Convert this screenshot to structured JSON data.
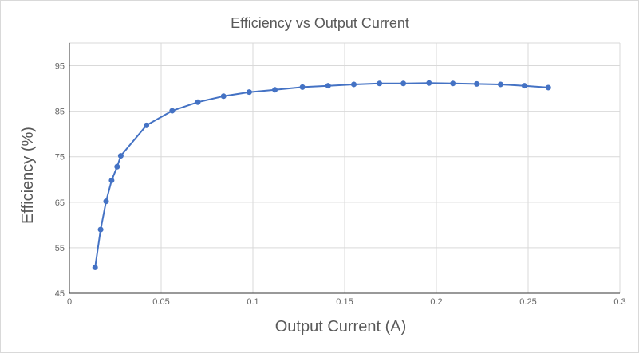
{
  "chart_data": {
    "type": "line",
    "title": "Efficiency vs Output Current",
    "xlabel": "Output Current (A)",
    "ylabel": "Efficiency (%)",
    "xlim": [
      0,
      0.3
    ],
    "ylim": [
      45,
      100
    ],
    "x_ticks": [
      0,
      0.05,
      0.1,
      0.15,
      0.2,
      0.25,
      0.3
    ],
    "x_tick_labels": [
      "0",
      "0.05",
      "0.1",
      "0.15",
      "0.2",
      "0.25",
      "0.3"
    ],
    "y_ticks": [
      45,
      55,
      65,
      75,
      85,
      95
    ],
    "y_tick_labels": [
      "45",
      "55",
      "65",
      "75",
      "85",
      "95"
    ],
    "grid": true,
    "legend": "none",
    "color": "#4472c4",
    "series": [
      {
        "x": [
          0.014,
          0.017,
          0.02,
          0.023,
          0.026,
          0.028,
          0.042,
          0.056,
          0.07,
          0.084,
          0.098,
          0.112,
          0.127,
          0.141,
          0.155,
          0.169,
          0.182,
          0.196,
          0.209,
          0.222,
          0.235,
          0.248,
          0.261
        ],
        "y": [
          50.7,
          59.0,
          65.2,
          69.8,
          72.8,
          75.2,
          81.9,
          85.1,
          87.0,
          88.3,
          89.2,
          89.7,
          90.3,
          90.6,
          90.9,
          91.1,
          91.1,
          91.2,
          91.1,
          91.0,
          90.9,
          90.6,
          90.2
        ]
      }
    ]
  }
}
